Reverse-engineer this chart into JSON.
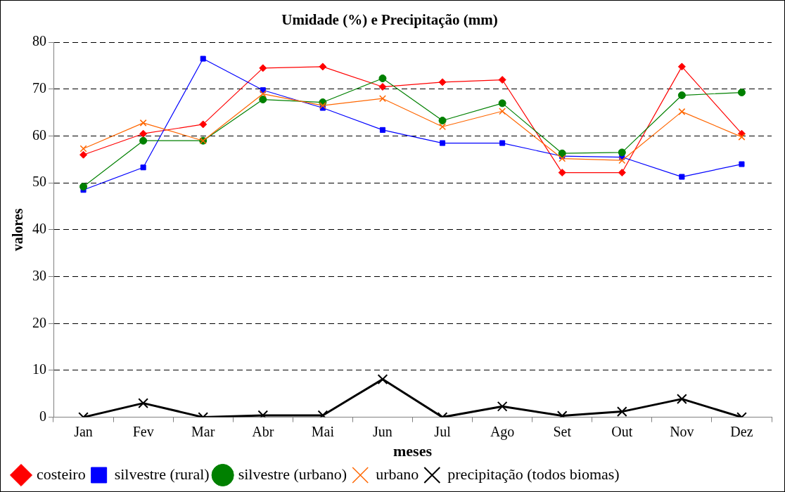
{
  "chart_data": {
    "type": "line",
    "title": "Umidade (%) e Precipitação (mm)",
    "xlabel": "meses",
    "ylabel": "valores",
    "categories": [
      "Jan",
      "Fev",
      "Mar",
      "Abr",
      "Mai",
      "Jun",
      "Jul",
      "Ago",
      "Set",
      "Out",
      "Nov",
      "Dez"
    ],
    "ylim": [
      0,
      80
    ],
    "yticks": [
      0,
      10,
      20,
      30,
      40,
      50,
      60,
      70,
      80
    ],
    "grid": "y",
    "legend": "bottom",
    "line_style": "solid",
    "series": [
      {
        "name": "costeiro",
        "color": "#ff0000",
        "marker": "diamond",
        "values": [
          56,
          60.5,
          62.5,
          74.5,
          74.8,
          70.5,
          71.5,
          72,
          52.2,
          52.2,
          74.8,
          60.5
        ]
      },
      {
        "name": "silvestre (rural)",
        "color": "#0000ff",
        "marker": "square",
        "values": [
          48.5,
          53.3,
          76.5,
          69.8,
          66,
          61.3,
          58.5,
          58.5,
          55.7,
          55.5,
          51.3,
          54
        ]
      },
      {
        "name": "silvestre (urbano)",
        "color": "#008000",
        "marker": "circle",
        "values": [
          49.2,
          59,
          59,
          67.8,
          67.2,
          72.3,
          63.3,
          67,
          56.3,
          56.5,
          68.7,
          69.3
        ]
      },
      {
        "name": "urbano",
        "color": "#ff6600",
        "marker": "cross",
        "values": [
          57.3,
          62.8,
          59,
          69,
          66.5,
          68,
          62,
          65.3,
          55.2,
          54.8,
          65.2,
          59.8
        ]
      },
      {
        "name": "precipitação (todos biomas)",
        "color": "#000000",
        "marker": "cross",
        "values": [
          0,
          3,
          0,
          0.4,
          0.4,
          8.1,
          0,
          2.3,
          0.3,
          1.2,
          3.9,
          0
        ]
      }
    ]
  }
}
